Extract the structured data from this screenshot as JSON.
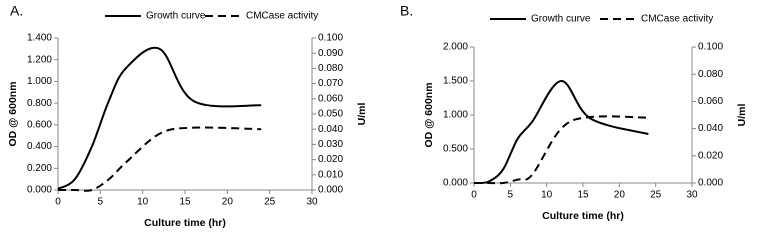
{
  "chart_data": [
    {
      "type": "line",
      "label": "A.",
      "xlabel": "Culture time (hr)",
      "ylabel": "OD @ 600nm",
      "y2label": "U/ml",
      "x": [
        0,
        2,
        4,
        6,
        8,
        12,
        16,
        24
      ],
      "series": [
        {
          "name": "Growth curve",
          "color": "#000000",
          "dash": false,
          "values": [
            0.01,
            0.1,
            0.4,
            0.82,
            1.12,
            1.3,
            0.82,
            0.78
          ]
        },
        {
          "name": "CMCase activity",
          "color": "#000000",
          "dash": true,
          "axis": "y2",
          "values": [
            0,
            0,
            0,
            0.007,
            0.018,
            0.037,
            0.041,
            0.04
          ]
        }
      ],
      "xlim": [
        0,
        30
      ],
      "xticks": [
        0,
        5,
        10,
        15,
        20,
        25,
        30
      ],
      "ylim": [
        0,
        1.4
      ],
      "yticks": [
        {
          "value": 0,
          "label": "0.000"
        },
        {
          "value": 0.2,
          "label": "0.200"
        },
        {
          "value": 0.4,
          "label": "0.400"
        },
        {
          "value": 0.6,
          "label": "0.600"
        },
        {
          "value": 0.8,
          "label": "0.800"
        },
        {
          "value": 1.0,
          "label": "1.000"
        },
        {
          "value": 1.2,
          "label": "1.200"
        },
        {
          "value": 1.4,
          "label": "1.400"
        }
      ],
      "y2lim": [
        0,
        0.1
      ],
      "y2ticks": [
        {
          "value": 0,
          "label": "0.000"
        },
        {
          "value": 0.01,
          "label": "0.010"
        },
        {
          "value": 0.02,
          "label": "0.020"
        },
        {
          "value": 0.03,
          "label": "0.030"
        },
        {
          "value": 0.04,
          "label": "0.040"
        },
        {
          "value": 0.05,
          "label": "0.050"
        },
        {
          "value": 0.06,
          "label": "0.060"
        },
        {
          "value": 0.07,
          "label": "0.070"
        },
        {
          "value": 0.08,
          "label": "0.080"
        },
        {
          "value": 0.09,
          "label": "0.090"
        },
        {
          "value": 0.1,
          "label": "0.100"
        }
      ]
    },
    {
      "type": "line",
      "label": "B.",
      "xlabel": "Culture time (hr)",
      "ylabel": "OD @ 600nm",
      "y2label": "U/ml",
      "x": [
        0,
        2,
        4,
        6,
        8,
        12,
        16,
        24
      ],
      "series": [
        {
          "name": "Growth curve",
          "color": "#000000",
          "dash": false,
          "values": [
            0,
            0.02,
            0.2,
            0.65,
            0.9,
            1.5,
            0.95,
            0.72
          ]
        },
        {
          "name": "CMCase activity",
          "color": "#000000",
          "dash": true,
          "axis": "y2",
          "values": [
            0,
            0,
            0,
            0.0025,
            0.006,
            0.04,
            0.0485,
            0.048
          ]
        }
      ],
      "xlim": [
        0,
        30
      ],
      "xticks": [
        0,
        5,
        10,
        15,
        20,
        25,
        30
      ],
      "ylim": [
        0,
        2
      ],
      "yticks": [
        {
          "value": 0,
          "label": "0.000"
        },
        {
          "value": 0.5,
          "label": "0.500"
        },
        {
          "value": 1.0,
          "label": "1.000"
        },
        {
          "value": 1.5,
          "label": "1.500"
        },
        {
          "value": 2.0,
          "label": "2.000"
        }
      ],
      "y2lim": [
        0,
        0.1
      ],
      "y2ticks": [
        {
          "value": 0,
          "label": "0.000"
        },
        {
          "value": 0.02,
          "label": "0.020"
        },
        {
          "value": 0.04,
          "label": "0.040"
        },
        {
          "value": 0.06,
          "label": "0.060"
        },
        {
          "value": 0.08,
          "label": "0.080"
        },
        {
          "value": 0.1,
          "label": "0.100"
        }
      ]
    }
  ]
}
